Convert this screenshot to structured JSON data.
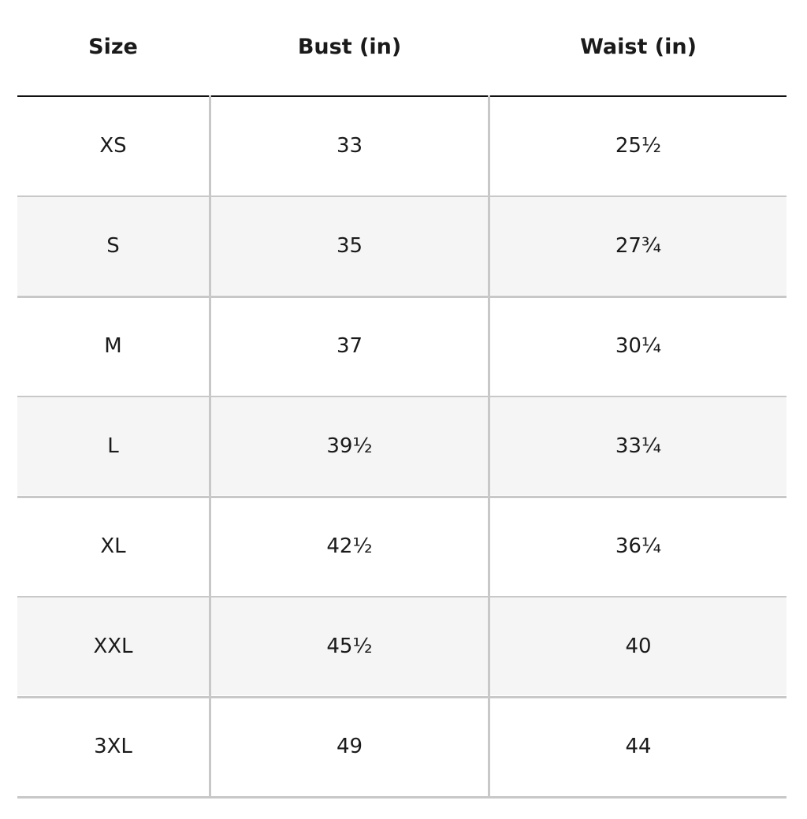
{
  "headers": [
    "Size",
    "Bust (in)",
    "Waist (in)"
  ],
  "rows": [
    {
      "size": "XS",
      "bust": "33",
      "waist": "25½"
    },
    {
      "size": "S",
      "bust": "35",
      "waist": "27¾"
    },
    {
      "size": "M",
      "bust": "37",
      "waist": "30¼"
    },
    {
      "size": "L",
      "bust": "39½",
      "waist": "33¼"
    },
    {
      "size": "XL",
      "bust": "42½",
      "waist": "36¼"
    },
    {
      "size": "XXL",
      "bust": "45½",
      "waist": "40"
    },
    {
      "size": "3XL",
      "bust": "49",
      "waist": "44"
    }
  ],
  "colors": {
    "stripe": "#f5f5f5",
    "rule": "#c8c8c8",
    "header_rule": "#111111"
  }
}
